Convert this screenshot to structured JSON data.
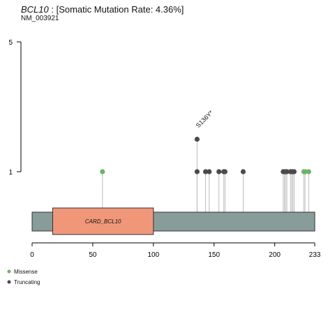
{
  "header": {
    "gene": "BCL10",
    "rate_text": " : [Somatic Mutation Rate: 4.36%]",
    "transcript": "NM_003921"
  },
  "colors": {
    "backbone": "#889c99",
    "domain": "#f0977a",
    "missense": "#6ab564",
    "truncating": "#4b4b4b",
    "stem": "#bdbdbd"
  },
  "chart_data": {
    "type": "lollipop",
    "title": "BCL10 : [Somatic Mutation Rate: 4.36%]",
    "subtitle": "NM_003921",
    "protein_length": 233,
    "xlim": [
      0,
      233
    ],
    "x_ticks": [
      0,
      50,
      100,
      150,
      200,
      233
    ],
    "ylim": [
      0,
      5
    ],
    "y_ticks": [
      1,
      5
    ],
    "domains": [
      {
        "name": "CARD_BCL10",
        "start": 17,
        "end": 100
      }
    ],
    "mutations": [
      {
        "pos": 58,
        "count": 1,
        "type": "Missense"
      },
      {
        "pos": 136,
        "count": 1,
        "type": "Truncating"
      },
      {
        "pos": 136,
        "count": 2,
        "type": "Truncating",
        "label": "S136Y*"
      },
      {
        "pos": 143,
        "count": 1,
        "type": "Truncating"
      },
      {
        "pos": 146,
        "count": 1,
        "type": "Truncating"
      },
      {
        "pos": 154,
        "count": 1,
        "type": "Truncating"
      },
      {
        "pos": 158,
        "count": 1,
        "type": "Truncating"
      },
      {
        "pos": 159,
        "count": 1,
        "type": "Truncating"
      },
      {
        "pos": 174,
        "count": 1,
        "type": "Truncating"
      },
      {
        "pos": 207,
        "count": 1,
        "type": "Truncating"
      },
      {
        "pos": 208,
        "count": 1,
        "type": "Truncating"
      },
      {
        "pos": 209,
        "count": 1,
        "type": "Truncating"
      },
      {
        "pos": 210,
        "count": 1,
        "type": "Truncating"
      },
      {
        "pos": 213,
        "count": 1,
        "type": "Truncating"
      },
      {
        "pos": 214,
        "count": 1,
        "type": "Truncating"
      },
      {
        "pos": 215,
        "count": 1,
        "type": "Truncating"
      },
      {
        "pos": 216,
        "count": 1,
        "type": "Truncating"
      },
      {
        "pos": 224,
        "count": 1,
        "type": "Missense"
      },
      {
        "pos": 225,
        "count": 1,
        "type": "Missense"
      },
      {
        "pos": 228,
        "count": 1,
        "type": "Missense"
      }
    ],
    "legend": {
      "placement": "bottom-left",
      "entries": [
        {
          "label": "Missense",
          "type": "Missense"
        },
        {
          "label": "Truncating",
          "type": "Truncating"
        }
      ]
    }
  }
}
